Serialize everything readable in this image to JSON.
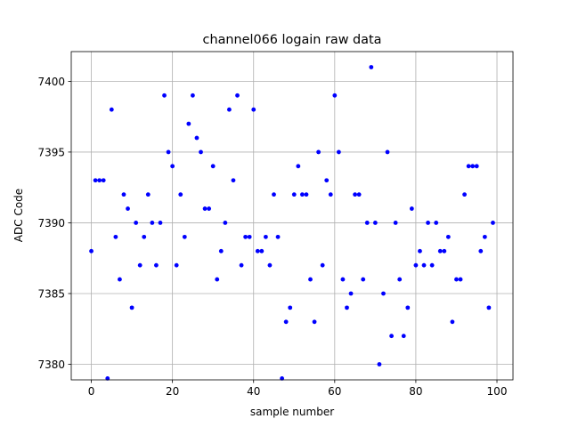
{
  "chart_data": {
    "type": "scatter",
    "title": "channel066 logain raw data",
    "xlabel": "sample number",
    "ylabel": "ADC Code",
    "xlim": [
      -4.95,
      103.95
    ],
    "ylim": [
      7378.9,
      7402.1
    ],
    "xticks": [
      0,
      20,
      40,
      60,
      80,
      100
    ],
    "yticks": [
      7380,
      7385,
      7390,
      7395,
      7400
    ],
    "grid": true,
    "marker_color": "#0000ff",
    "series": [
      {
        "x": [
          0,
          1,
          2,
          3,
          4,
          5,
          6,
          7,
          8,
          9,
          10,
          11,
          12,
          13,
          14,
          15,
          16,
          17,
          18,
          19,
          20,
          21,
          22,
          23,
          24,
          25,
          26,
          27,
          28,
          29,
          30,
          31,
          32,
          33,
          34,
          35,
          36,
          37,
          38,
          39,
          40,
          41,
          42,
          43,
          44,
          45,
          46,
          47,
          48,
          49,
          50,
          51,
          52,
          53,
          54,
          55,
          56,
          57,
          58,
          59,
          60,
          61,
          62,
          63,
          64,
          65,
          66,
          67,
          68,
          69,
          70,
          71,
          72,
          73,
          74,
          75,
          76,
          77,
          78,
          79,
          80,
          81,
          82,
          83,
          84,
          85,
          86,
          87,
          88,
          89,
          90,
          91,
          92,
          93,
          94,
          95,
          96,
          97,
          98,
          99
        ],
        "y": [
          7388,
          7393,
          7393,
          7393,
          7379,
          7398,
          7389,
          7386,
          7392,
          7391,
          7384,
          7390,
          7387,
          7389,
          7392,
          7390,
          7387,
          7390,
          7399,
          7395,
          7394,
          7387,
          7392,
          7389,
          7397,
          7399,
          7396,
          7395,
          7391,
          7391,
          7394,
          7386,
          7388,
          7390,
          7398,
          7393,
          7399,
          7387,
          7389,
          7389,
          7398,
          7388,
          7388,
          7389,
          7387,
          7392,
          7389,
          7379,
          7383,
          7384,
          7392,
          7394,
          7392,
          7392,
          7386,
          7383,
          7395,
          7387,
          7393,
          7392,
          7399,
          7395,
          7386,
          7384,
          7385,
          7392,
          7392,
          7386,
          7390,
          7401,
          7390,
          7380,
          7385,
          7395,
          7382,
          7390,
          7386,
          7382,
          7384,
          7391,
          7387,
          7388,
          7387,
          7390,
          7387,
          7390,
          7388,
          7388,
          7389,
          7383,
          7386,
          7386,
          7392,
          7394,
          7394,
          7394,
          7388,
          7389,
          7384,
          7390
        ]
      }
    ]
  }
}
